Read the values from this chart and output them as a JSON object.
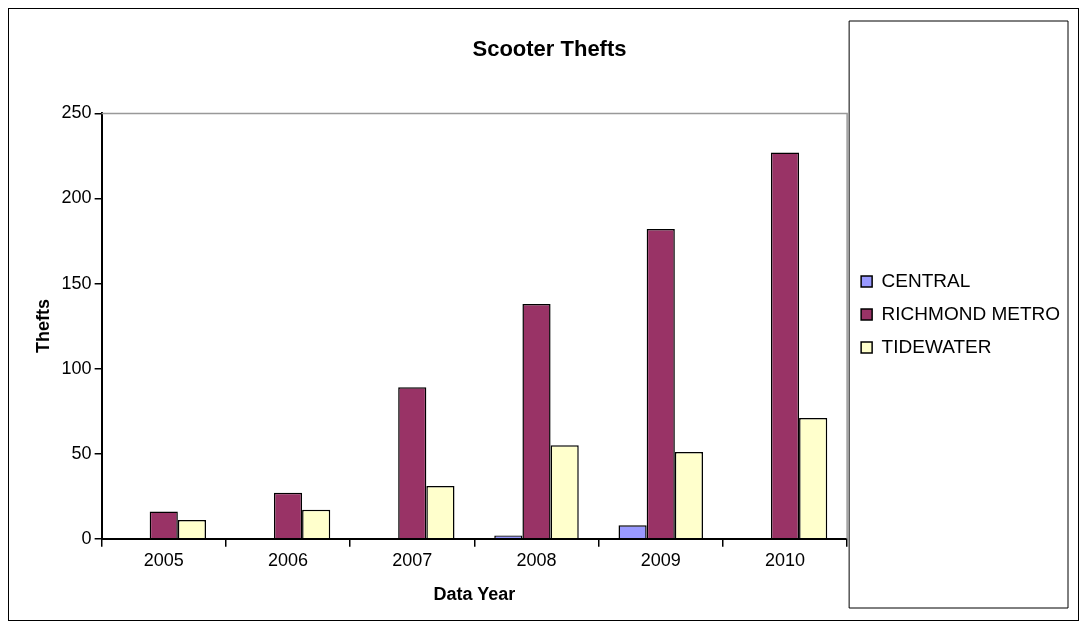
{
  "chart_data": {
    "type": "bar",
    "title": "Scooter Thefts",
    "xlabel": "Data Year",
    "ylabel": "Thefts",
    "categories": [
      "2005",
      "2006",
      "2007",
      "2008",
      "2009",
      "2010"
    ],
    "series": [
      {
        "name": "CENTRAL",
        "color": "#9999ff",
        "values": [
          0,
          0,
          0,
          2,
          8,
          0
        ]
      },
      {
        "name": "RICHMOND METRO",
        "color": "#993366",
        "values": [
          16,
          27,
          89,
          138,
          182,
          227
        ]
      },
      {
        "name": "TIDEWATER",
        "color": "#ffffcc",
        "values": [
          11,
          17,
          31,
          55,
          51,
          71
        ]
      }
    ],
    "ylim": [
      0,
      250
    ],
    "yticks": [
      0,
      50,
      100,
      150,
      200,
      250
    ],
    "grid": false,
    "legend": "right"
  }
}
